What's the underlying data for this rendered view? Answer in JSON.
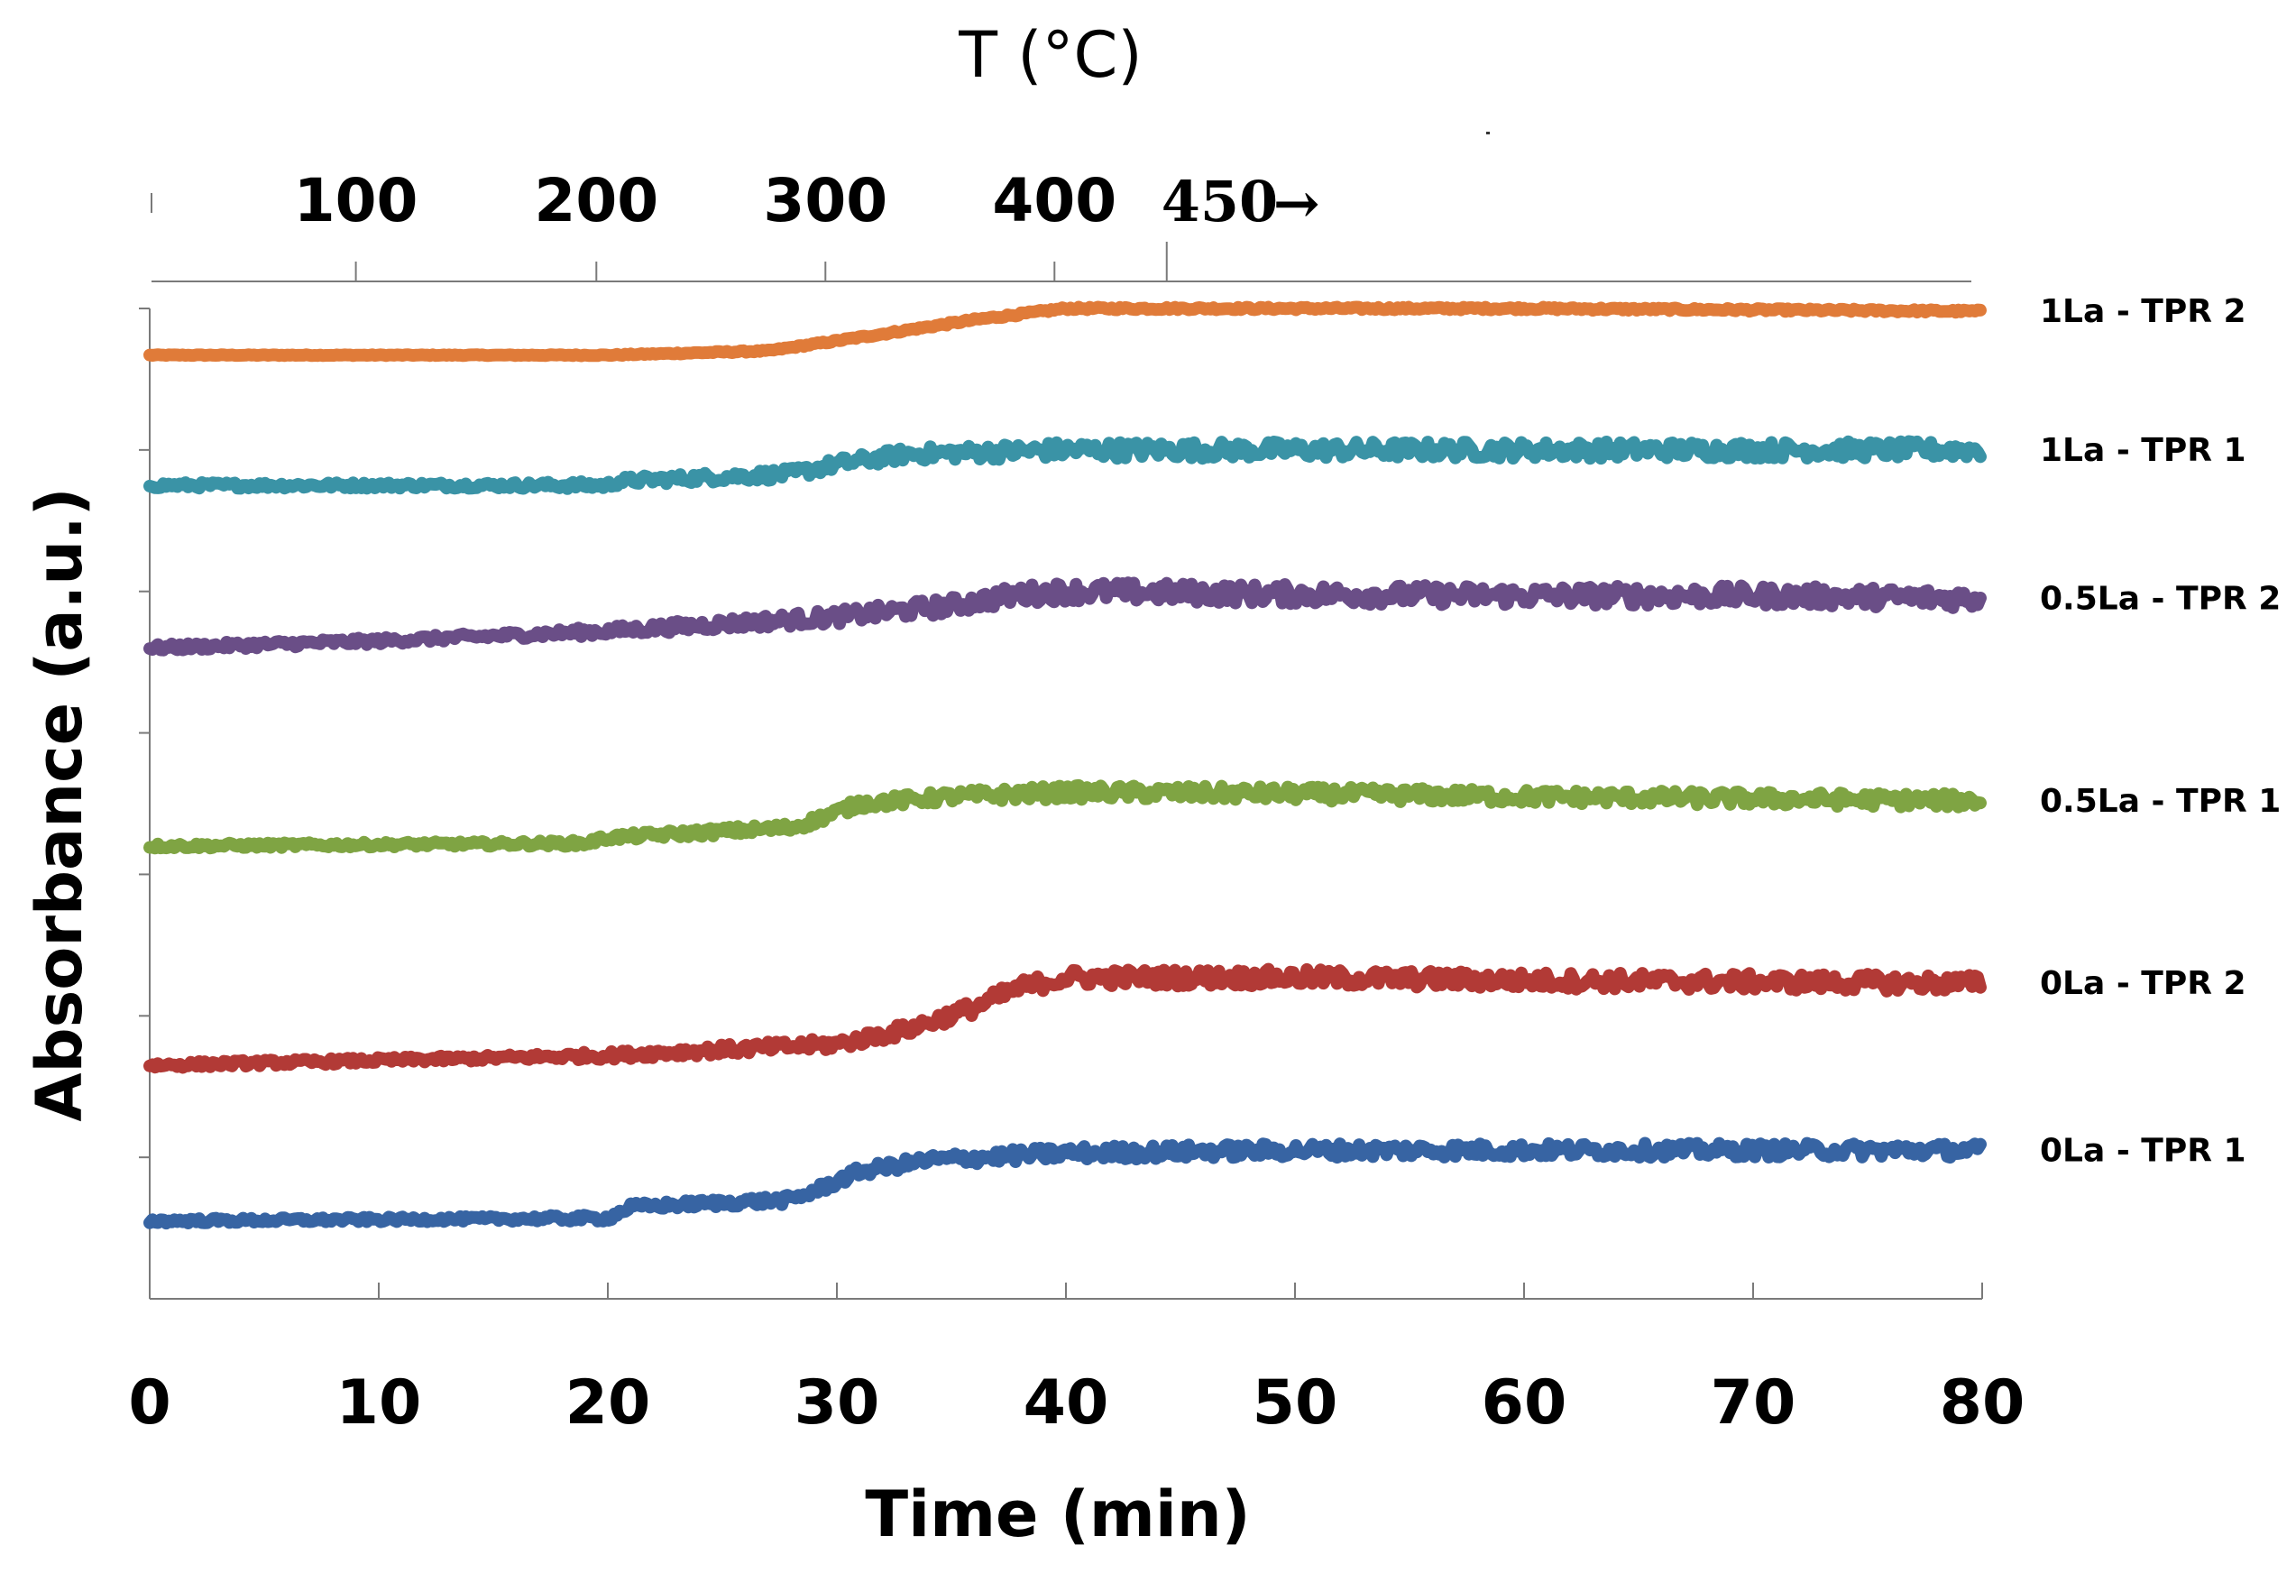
{
  "chart_data": {
    "type": "line",
    "xlabel": "Time (min)",
    "ylabel": "Absorbance (a.u.)",
    "xlim": [
      0,
      80
    ],
    "x_ticks": [
      0,
      10,
      20,
      30,
      40,
      50,
      60,
      70,
      80
    ],
    "x_tick_labels": [
      "0",
      "10",
      "20",
      "30",
      "40",
      "50",
      "60",
      "70",
      "80"
    ],
    "ylim": [
      0,
      7
    ],
    "y_ticks": [
      1,
      2,
      3,
      4,
      5,
      6,
      7
    ],
    "y_tick_labels_shown": false,
    "secondary_x_axis": {
      "label": "T (°C)",
      "ticks": [
        100,
        200,
        300,
        400,
        450
      ],
      "tick_time_positions": [
        9,
        19.5,
        29.5,
        39.5,
        44.4
      ],
      "tick_labels": [
        "100",
        "200",
        "300",
        "400",
        "450"
      ],
      "arrow_glyph": "→"
    },
    "series": [
      {
        "name": "1La - TPR 2",
        "color": "#E07B39",
        "noise": 0.01,
        "points": [
          [
            0,
            6.67
          ],
          [
            20,
            6.67
          ],
          [
            27,
            6.7
          ],
          [
            32,
            6.82
          ],
          [
            36,
            6.92
          ],
          [
            40,
            7.0
          ],
          [
            50,
            7.0
          ],
          [
            60,
            7.0
          ],
          [
            80,
            6.98
          ]
        ]
      },
      {
        "name": "1La - TPR 1",
        "color": "#3A93A6",
        "noise": 0.06,
        "points": [
          [
            0,
            5.75
          ],
          [
            20,
            5.75
          ],
          [
            20.5,
            5.78
          ],
          [
            28,
            5.83
          ],
          [
            30,
            5.9
          ],
          [
            33,
            5.97
          ],
          [
            40,
            6.0
          ],
          [
            50,
            6.0
          ],
          [
            60,
            6.0
          ],
          [
            80,
            6.0
          ]
        ]
      },
      {
        "name": "0.5La - TPR 2",
        "color": "#6A4E87",
        "noise": 0.07,
        "points": [
          [
            0,
            4.6
          ],
          [
            10,
            4.65
          ],
          [
            20,
            4.72
          ],
          [
            30,
            4.82
          ],
          [
            35,
            4.9
          ],
          [
            38,
            4.98
          ],
          [
            40,
            5.0
          ],
          [
            50,
            4.98
          ],
          [
            60,
            4.97
          ],
          [
            70,
            4.97
          ],
          [
            80,
            4.95
          ]
        ]
      },
      {
        "name": "0.5La - TPR 1",
        "color": "#7FA443",
        "noise": 0.05,
        "points": [
          [
            0,
            3.2
          ],
          [
            19,
            3.22
          ],
          [
            20,
            3.26
          ],
          [
            28,
            3.33
          ],
          [
            29,
            3.38
          ],
          [
            31,
            3.5
          ],
          [
            35,
            3.55
          ],
          [
            40,
            3.58
          ],
          [
            50,
            3.57
          ],
          [
            60,
            3.55
          ],
          [
            80,
            3.52
          ]
        ]
      },
      {
        "name": "0La - TPR 2",
        "color": "#B23A36",
        "noise": 0.06,
        "points": [
          [
            0,
            1.65
          ],
          [
            20,
            1.72
          ],
          [
            30,
            1.8
          ],
          [
            33,
            1.9
          ],
          [
            36,
            2.06
          ],
          [
            38,
            2.2
          ],
          [
            40,
            2.27
          ],
          [
            50,
            2.27
          ],
          [
            60,
            2.25
          ],
          [
            80,
            2.23
          ]
        ]
      },
      {
        "name": "0La - TPR 1",
        "color": "#3764A3",
        "noise": 0.05,
        "points": [
          [
            0,
            0.55
          ],
          [
            20,
            0.57
          ],
          [
            21,
            0.65
          ],
          [
            28,
            0.7
          ],
          [
            29,
            0.76
          ],
          [
            31,
            0.9
          ],
          [
            34,
            0.98
          ],
          [
            40,
            1.03
          ],
          [
            50,
            1.05
          ],
          [
            60,
            1.05
          ],
          [
            80,
            1.05
          ]
        ]
      }
    ]
  }
}
